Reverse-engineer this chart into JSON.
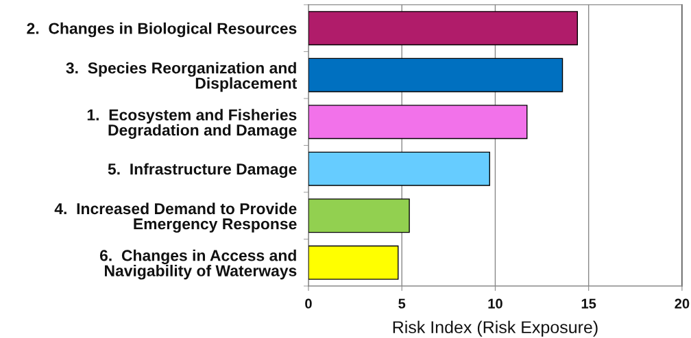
{
  "chart_data": {
    "type": "bar",
    "orientation": "horizontal",
    "categories": [
      "2.  Changes in Biological Resources",
      "3.  Species Reorganization and\nDisplacement",
      "1.  Ecosystem and Fisheries\nDegradation and Damage",
      "5.  Infrastructure Damage",
      "4.  Increased Demand to Provide\nEmergency Response",
      "6.  Changes in Access and\nNavigability of Waterways"
    ],
    "values": [
      14.4,
      13.6,
      11.7,
      9.7,
      5.4,
      4.8
    ],
    "colors": [
      "#b01c6a",
      "#0070c0",
      "#f272ea",
      "#66ccff",
      "#92d050",
      "#ffff00"
    ],
    "xlabel": "Risk Index (Risk Exposure)",
    "xlim": [
      0,
      20
    ],
    "xticks": [
      0,
      5,
      10,
      15,
      20
    ],
    "grid": "x",
    "legend": false
  }
}
